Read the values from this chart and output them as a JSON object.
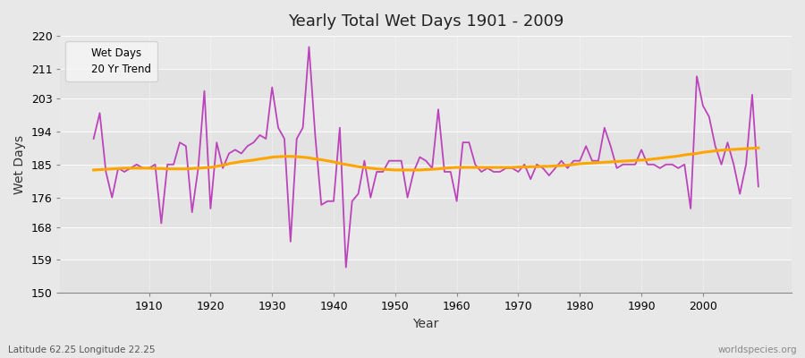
{
  "title": "Yearly Total Wet Days 1901 - 2009",
  "xlabel": "Year",
  "ylabel": "Wet Days",
  "subtitle": "Latitude 62.25 Longitude 22.25",
  "watermark": "worldspecies.org",
  "ylim": [
    150,
    220
  ],
  "yticks": [
    150,
    159,
    168,
    176,
    185,
    194,
    203,
    211,
    220
  ],
  "xticks": [
    1910,
    1920,
    1930,
    1940,
    1950,
    1960,
    1970,
    1980,
    1990,
    2000
  ],
  "years": [
    1901,
    1902,
    1903,
    1904,
    1905,
    1906,
    1907,
    1908,
    1909,
    1910,
    1911,
    1912,
    1913,
    1914,
    1915,
    1916,
    1917,
    1918,
    1919,
    1920,
    1921,
    1922,
    1923,
    1924,
    1925,
    1926,
    1927,
    1928,
    1929,
    1930,
    1931,
    1932,
    1933,
    1934,
    1935,
    1936,
    1937,
    1938,
    1939,
    1940,
    1941,
    1942,
    1943,
    1944,
    1945,
    1946,
    1947,
    1948,
    1949,
    1950,
    1951,
    1952,
    1953,
    1954,
    1955,
    1956,
    1957,
    1958,
    1959,
    1960,
    1961,
    1962,
    1963,
    1964,
    1965,
    1966,
    1967,
    1968,
    1969,
    1970,
    1971,
    1972,
    1973,
    1974,
    1975,
    1976,
    1977,
    1978,
    1979,
    1980,
    1981,
    1982,
    1983,
    1984,
    1985,
    1986,
    1987,
    1988,
    1989,
    1990,
    1991,
    1992,
    1993,
    1994,
    1995,
    1996,
    1997,
    1998,
    1999,
    2000,
    2001,
    2002,
    2003,
    2004,
    2005,
    2006,
    2007,
    2008,
    2009
  ],
  "wet_days": [
    192,
    199,
    183,
    176,
    184,
    183,
    184,
    185,
    184,
    184,
    185,
    169,
    185,
    185,
    191,
    190,
    172,
    184,
    205,
    173,
    191,
    184,
    188,
    189,
    188,
    190,
    191,
    193,
    192,
    206,
    195,
    192,
    164,
    192,
    195,
    217,
    193,
    174,
    175,
    175,
    195,
    157,
    175,
    177,
    186,
    176,
    183,
    183,
    186,
    186,
    186,
    176,
    183,
    187,
    186,
    184,
    200,
    183,
    183,
    175,
    191,
    191,
    185,
    183,
    184,
    183,
    183,
    184,
    184,
    183,
    185,
    181,
    185,
    184,
    182,
    184,
    186,
    184,
    186,
    186,
    190,
    186,
    186,
    195,
    190,
    184,
    185,
    185,
    185,
    189,
    185,
    185,
    184,
    185,
    185,
    184,
    185,
    173,
    209,
    201,
    198,
    190,
    185,
    191,
    185,
    177,
    185,
    204,
    179
  ],
  "trend": [
    183.5,
    183.6,
    183.7,
    183.8,
    183.9,
    184.0,
    184.0,
    184.0,
    184.0,
    184.0,
    183.9,
    183.9,
    183.8,
    183.8,
    183.8,
    183.8,
    183.9,
    184.0,
    184.1,
    184.2,
    184.5,
    184.8,
    185.2,
    185.5,
    185.8,
    186.0,
    186.2,
    186.5,
    186.7,
    187.0,
    187.1,
    187.2,
    187.2,
    187.1,
    187.0,
    186.8,
    186.5,
    186.3,
    186.0,
    185.7,
    185.3,
    185.0,
    184.7,
    184.4,
    184.2,
    184.0,
    183.8,
    183.7,
    183.6,
    183.5,
    183.5,
    183.5,
    183.5,
    183.5,
    183.6,
    183.7,
    183.8,
    184.0,
    184.1,
    184.2,
    184.2,
    184.2,
    184.2,
    184.2,
    184.2,
    184.2,
    184.2,
    184.2,
    184.2,
    184.3,
    184.3,
    184.4,
    184.4,
    184.5,
    184.5,
    184.6,
    184.7,
    184.8,
    185.0,
    185.2,
    185.3,
    185.4,
    185.5,
    185.6,
    185.7,
    185.8,
    185.9,
    186.0,
    186.1,
    186.2,
    186.3,
    186.5,
    186.7,
    186.9,
    187.1,
    187.3,
    187.6,
    187.8,
    188.0,
    188.3,
    188.5,
    188.7,
    188.9,
    189.0,
    189.1,
    189.2,
    189.3,
    189.4,
    189.5
  ],
  "wet_days_color": "#BB44BB",
  "trend_color": "#FFA500",
  "bg_color": "#E8E8E8",
  "plot_bg_color": "#EBEBEB",
  "grid_color": "#FFFFFF",
  "legend_bg_color": "#F5F5F5"
}
